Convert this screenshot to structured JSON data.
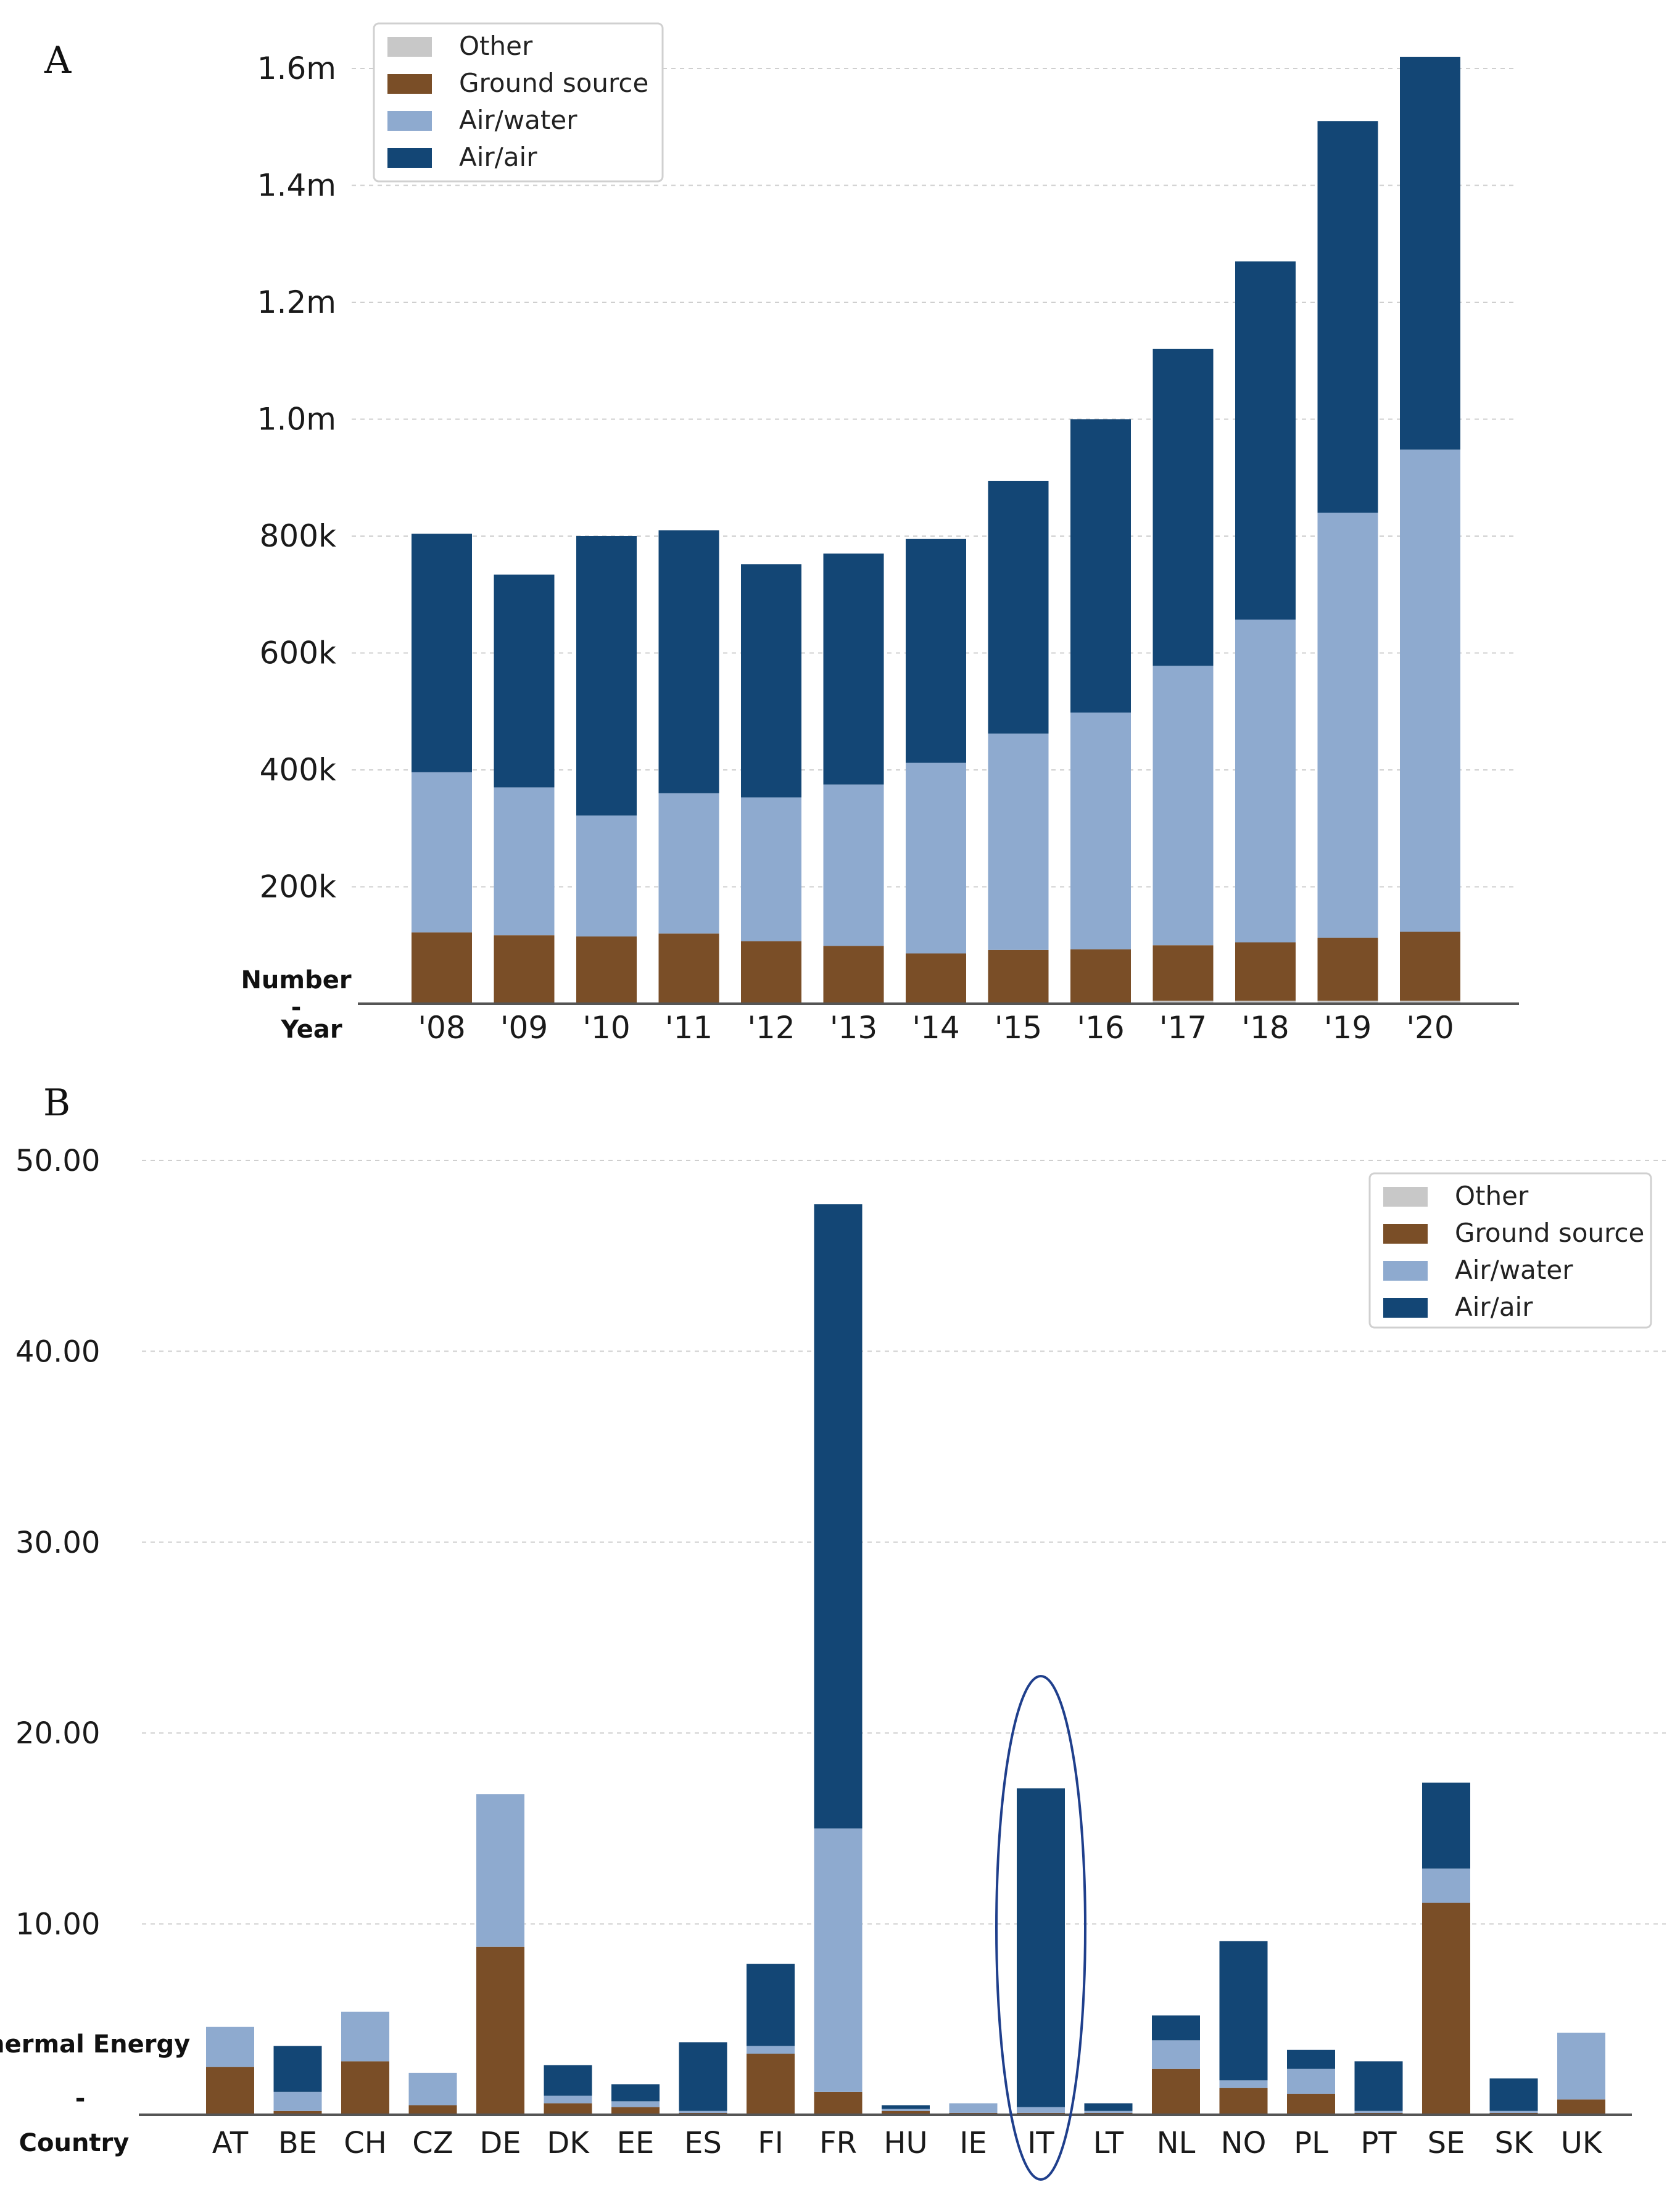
{
  "colors": {
    "Other": "#c8c8c8",
    "Ground source": "#7a4e27",
    "Air/water": "#8eaacf",
    "Air/air": "#134675",
    "highlight": "#1f3f8c"
  },
  "chart_data": [
    {
      "panel": "A",
      "type": "bar",
      "stacked": true,
      "title": "",
      "ylabel": "Number",
      "xlabel": "Year",
      "ylim": [
        0,
        1620000
      ],
      "yticks": [
        200000,
        400000,
        600000,
        800000,
        1000000,
        1200000,
        1400000,
        1600000
      ],
      "ytick_labels": [
        "200k",
        "400k",
        "600k",
        "800k",
        "1.0m",
        "1.2m",
        "1.4m",
        "1.6m"
      ],
      "legend": [
        "Other",
        "Ground source",
        "Air/water",
        "Air/air"
      ],
      "legend_position": "top-left",
      "categories": [
        "'08",
        "'09",
        "'10",
        "'11",
        "'12",
        "'13",
        "'14",
        "'15",
        "'16",
        "'17",
        "'18",
        "'19",
        "'20"
      ],
      "series": [
        {
          "name": "Other",
          "values": [
            2000,
            2000,
            2000,
            2000,
            2000,
            2000,
            2000,
            2000,
            2000,
            5000,
            5000,
            5000,
            5000
          ]
        },
        {
          "name": "Ground source",
          "values": [
            120000,
            115000,
            113000,
            118000,
            105000,
            97000,
            84000,
            90000,
            91000,
            95000,
            100000,
            108000,
            118000
          ]
        },
        {
          "name": "Air/water",
          "values": [
            274000,
            253000,
            207000,
            240000,
            246000,
            276000,
            326000,
            370000,
            405000,
            478000,
            552000,
            727000,
            825000
          ]
        },
        {
          "name": "Air/air",
          "values": [
            408000,
            364000,
            478000,
            450000,
            399000,
            395000,
            383000,
            432000,
            502000,
            542000,
            613000,
            670000,
            672000
          ]
        }
      ]
    },
    {
      "panel": "B",
      "type": "bar",
      "stacked": true,
      "title": "",
      "ylabel": "Thermal Energy",
      "xlabel": "Country",
      "ylim": [
        0,
        50
      ],
      "yticks": [
        10,
        20,
        30,
        40,
        50
      ],
      "ytick_labels": [
        "10.00",
        "20.00",
        "30.00",
        "40.00",
        "50.00"
      ],
      "legend": [
        "Other",
        "Ground source",
        "Air/water",
        "Air/air"
      ],
      "legend_position": "top-right",
      "highlighted_category": "IT",
      "categories": [
        "AT",
        "BE",
        "CH",
        "CZ",
        "DE",
        "DK",
        "EE",
        "ES",
        "FI",
        "FR",
        "HU",
        "IE",
        "IT",
        "LT",
        "NL",
        "NO",
        "PL",
        "PT",
        "SE",
        "SK",
        "UK"
      ],
      "series": [
        {
          "name": "Other",
          "values": [
            0,
            0,
            0,
            0,
            0,
            0,
            0,
            0,
            0,
            0,
            0,
            0,
            0,
            0,
            0,
            0,
            0,
            0,
            0,
            0,
            0
          ]
        },
        {
          "name": "Ground source",
          "values": [
            2.5,
            0.2,
            2.8,
            0.5,
            8.8,
            0.6,
            0.4,
            0.1,
            3.2,
            1.2,
            0.2,
            0.1,
            0.1,
            0.1,
            2.4,
            1.4,
            1.1,
            0.1,
            11.1,
            0.1,
            0.8
          ]
        },
        {
          "name": "Air/water",
          "values": [
            2.1,
            1.0,
            2.6,
            1.7,
            8.0,
            0.4,
            0.3,
            0.1,
            0.4,
            13.8,
            0.1,
            0.5,
            0.3,
            0.1,
            1.5,
            0.4,
            1.3,
            0.1,
            1.8,
            0.1,
            3.5
          ]
        },
        {
          "name": "Air/air",
          "values": [
            0,
            2.4,
            0,
            0,
            0,
            1.6,
            0.9,
            3.6,
            4.3,
            32.7,
            0.2,
            0,
            16.7,
            0.4,
            1.3,
            7.3,
            1.0,
            2.6,
            4.5,
            1.7,
            0
          ]
        }
      ]
    }
  ]
}
